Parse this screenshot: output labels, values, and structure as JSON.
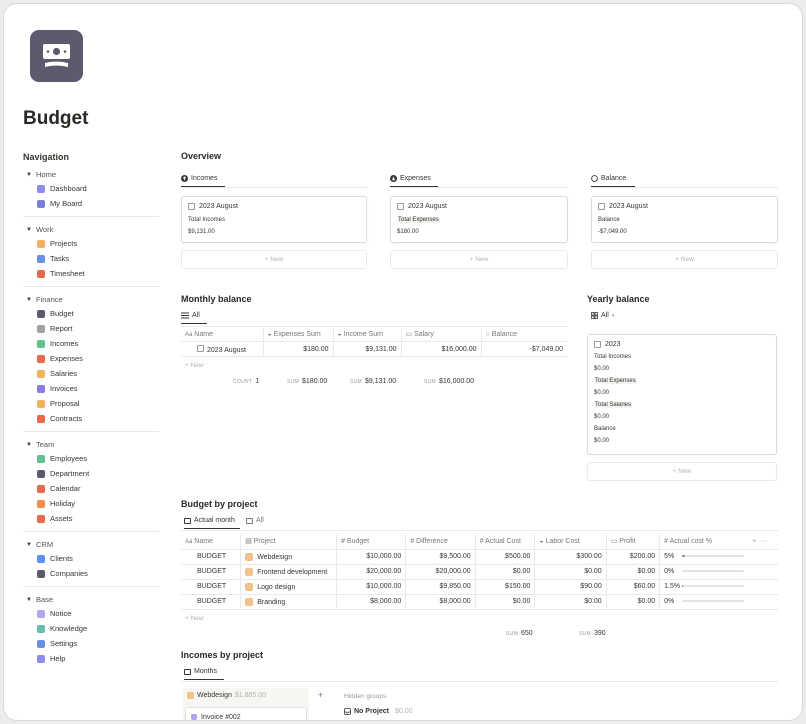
{
  "page": {
    "title": "Budget",
    "icon": "money-icon"
  },
  "nav": {
    "title": "Navigation",
    "groups": [
      {
        "label": "Home",
        "items": [
          {
            "label": "Dashboard",
            "color": "#8f8cf0"
          },
          {
            "label": "My Board",
            "color": "#7b7fd9"
          }
        ]
      },
      {
        "label": "Work",
        "items": [
          {
            "label": "Projects",
            "color": "#f0b35c"
          },
          {
            "label": "Tasks",
            "color": "#6a8fe8"
          },
          {
            "label": "Timesheet",
            "color": "#e8684c"
          }
        ]
      },
      {
        "label": "Finance",
        "items": [
          {
            "label": "Budget",
            "color": "#5d5a6d"
          },
          {
            "label": "Report",
            "color": "#a5a29b"
          },
          {
            "label": "Incomes",
            "color": "#63c08f"
          },
          {
            "label": "Expenses",
            "color": "#e8684c"
          },
          {
            "label": "Salaries",
            "color": "#f0b35c"
          },
          {
            "label": "Invoices",
            "color": "#8a7be6"
          },
          {
            "label": "Proposal",
            "color": "#f0b35c"
          },
          {
            "label": "Contracts",
            "color": "#e8684c"
          }
        ]
      },
      {
        "label": "Team",
        "items": [
          {
            "label": "Employees",
            "color": "#63c08f"
          },
          {
            "label": "Department",
            "color": "#5d5a6d"
          },
          {
            "label": "Calendar",
            "color": "#e8684c"
          },
          {
            "label": "Holiday",
            "color": "#f08c4c"
          },
          {
            "label": "Assets",
            "color": "#e8684c"
          }
        ]
      },
      {
        "label": "CRM",
        "items": [
          {
            "label": "Clients",
            "color": "#5b8ff0"
          },
          {
            "label": "Companies",
            "color": "#5d5a6d"
          }
        ]
      },
      {
        "label": "Base",
        "items": [
          {
            "label": "Notice",
            "color": "#b3a6f0"
          },
          {
            "label": "Knowledge",
            "color": "#63c0b0"
          },
          {
            "label": "Settings",
            "color": "#6a8fe8"
          },
          {
            "label": "Help",
            "color": "#8f8cf0"
          }
        ]
      }
    ]
  },
  "overview": {
    "title": "Overview",
    "new_label": "+ New",
    "cards": [
      {
        "tab": "Incomes",
        "icon": "arrow-up-circle-icon",
        "card_title": "2023 August",
        "label": "Total Incomes",
        "value": "$9,131.00"
      },
      {
        "tab": "Expenses",
        "icon": "arrow-down-circle-icon",
        "card_title": "2023 August",
        "label": "Total Expenses",
        "value": "$180.00"
      },
      {
        "tab": "Balance",
        "icon": "circle-icon",
        "card_title": "2023 August",
        "label": "Balance",
        "value": "-$7,049.00"
      }
    ]
  },
  "monthly": {
    "title": "Monthly balance",
    "tab": "All",
    "columns": [
      "Name",
      "Expenses Sum",
      "Income Sum",
      "Salary",
      "Balance"
    ],
    "rows": [
      {
        "name": "2023 August",
        "expenses": "$180.00",
        "income": "$9,131.00",
        "salary": "$16,000.00",
        "balance": "-$7,049.00"
      }
    ],
    "new_label": "+ New",
    "summary": {
      "count_k": "COUNT",
      "count": "1",
      "sum_k": "SUM",
      "expenses": "$180.00",
      "income": "$9,131.00",
      "salary": "$16,000.00"
    }
  },
  "yearly": {
    "title": "Yearly balance",
    "tab": "All",
    "card_title": "2023",
    "fields": [
      {
        "label": "Total Incomes",
        "value": "$0.00"
      },
      {
        "label": "Total Expenses",
        "value": "$0.00"
      },
      {
        "label": "Total Salaries",
        "value": "$0.00"
      },
      {
        "label": "Balance",
        "value": "$0.00"
      }
    ],
    "new_label": "+ New"
  },
  "budget": {
    "title": "Budget by project",
    "tabs": [
      "Actual month",
      "All"
    ],
    "columns": [
      "Name",
      "Project",
      "Budget",
      "Difference",
      "Actual Cost",
      "Labor Cost",
      "Profit",
      "Actual cost %"
    ],
    "rows": [
      {
        "name": "BUDGET",
        "project": "Webdesign",
        "budget": "$10,000.00",
        "diff": "$9,500.00",
        "actual": "$500.00",
        "labor": "$300.00",
        "profit": "$200.00",
        "pct": "5%",
        "pct_value": 0.05
      },
      {
        "name": "BUDGET",
        "project": "Frontend development",
        "budget": "$20,000.00",
        "diff": "$20,000.00",
        "actual": "$0.00",
        "labor": "$0.00",
        "profit": "$0.00",
        "pct": "0%",
        "pct_value": 0
      },
      {
        "name": "BUDGET",
        "project": "Logo design",
        "budget": "$10,000.00",
        "diff": "$9,850.00",
        "actual": "$150.00",
        "labor": "$90.00",
        "profit": "$60.00",
        "pct": "1.5%",
        "pct_value": 0.015
      },
      {
        "name": "BUDGET",
        "project": "Branding",
        "budget": "$8,000.00",
        "diff": "$8,000.00",
        "actual": "$0.00",
        "labor": "$0.00",
        "profit": "$0.00",
        "pct": "0%",
        "pct_value": 0
      }
    ],
    "new_label": "+ New",
    "summary": {
      "sum_k": "SUM",
      "actual": "650",
      "labor": "390"
    }
  },
  "incomes": {
    "title": "Incomes by project",
    "tab": "Months",
    "group_name": "Webdesign",
    "group_total": "$1,885.00",
    "card": "Invoice #002",
    "hidden_label": "Hidden groups",
    "no_project": "No Project",
    "no_project_total": "$0.00",
    "plus": "+"
  }
}
